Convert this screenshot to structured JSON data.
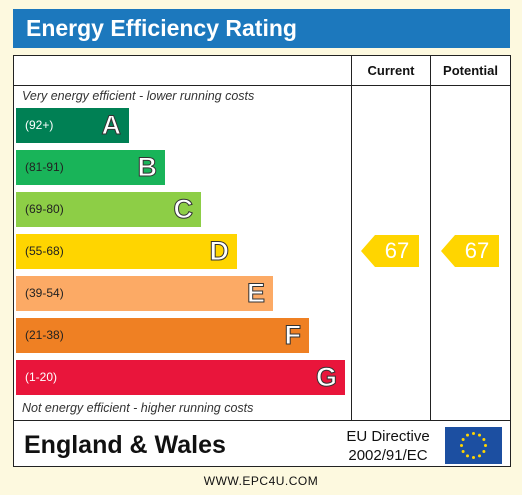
{
  "title": "Energy Efficiency Rating",
  "columns": {
    "current": "Current",
    "potential": "Potential"
  },
  "top_note": "Very energy efficient - lower running costs",
  "bottom_note": "Not energy efficient - higher running costs",
  "colors": {
    "A": "#008054",
    "B": "#19b459",
    "C": "#8dce46",
    "D": "#ffd500",
    "E": "#fcaa65",
    "F": "#ef8023",
    "G": "#e9153b",
    "arrow": "#ffd500",
    "title_bar": "#1c78bd"
  },
  "chart_data": {
    "type": "bar",
    "categories": [
      "A",
      "B",
      "C",
      "D",
      "E",
      "F",
      "G"
    ],
    "ranges": [
      "(92+)",
      "(81-91)",
      "(69-80)",
      "(55-68)",
      "(39-54)",
      "(21-38)",
      "(1-20)"
    ],
    "current": {
      "value": 67,
      "band": "D"
    },
    "potential": {
      "value": 67,
      "band": "D"
    }
  },
  "footer": {
    "region": "England & Wales",
    "directive_line1": "EU Directive",
    "directive_line2": "2002/91/EC",
    "flag_icon": "eu-flag-icon"
  },
  "website": "WWW.EPC4U.COM"
}
